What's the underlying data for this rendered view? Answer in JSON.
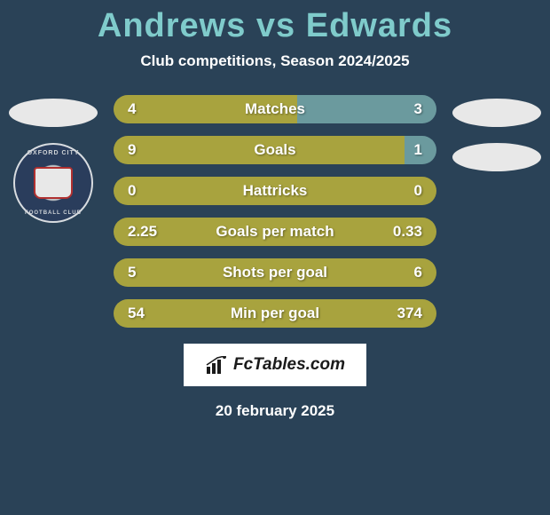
{
  "title": "Andrews vs Edwards",
  "subtitle": "Club competitions, Season 2024/2025",
  "date": "20 february 2025",
  "brand": "FcTables.com",
  "colors": {
    "title": "#7fcbcb",
    "background": "#2a4257",
    "bar_left": "#a8a33e",
    "bar_right": "#6b9a9e",
    "text": "#ffffff"
  },
  "club_badge": {
    "text_top": "OXFORD CITY",
    "text_bottom": "FOOTBALL CLUB"
  },
  "stats": [
    {
      "label": "Matches",
      "left_value": "4",
      "right_value": "3",
      "left_pct": 57,
      "right_pct": 43
    },
    {
      "label": "Goals",
      "left_value": "9",
      "right_value": "1",
      "left_pct": 90,
      "right_pct": 10
    },
    {
      "label": "Hattricks",
      "left_value": "0",
      "right_value": "0",
      "left_pct": 100,
      "right_pct": 0
    },
    {
      "label": "Goals per match",
      "left_value": "2.25",
      "right_value": "0.33",
      "left_pct": 100,
      "right_pct": 0
    },
    {
      "label": "Shots per goal",
      "left_value": "5",
      "right_value": "6",
      "left_pct": 100,
      "right_pct": 0
    },
    {
      "label": "Min per goal",
      "left_value": "54",
      "right_value": "374",
      "left_pct": 100,
      "right_pct": 0
    }
  ]
}
